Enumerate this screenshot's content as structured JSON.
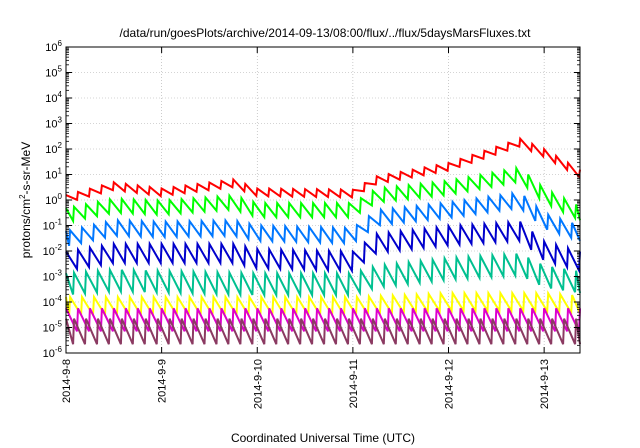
{
  "chart_data": {
    "type": "line",
    "title": "/data/run/goesPlots/archive/2014-09-13/08:00/flux/../flux/5daysMarsFluxes.txt",
    "xlabel": "Coordinated Universal Time (UTC)",
    "ylabel": {
      "prefix": "protons/cm",
      "sup": "2",
      "suffix": "-s-sr-MeV"
    },
    "yscale": "log",
    "ylim": [
      1e-06,
      1000000.0
    ],
    "xlim": [
      "2014-09-08 00:00",
      "2014-09-13 09:00"
    ],
    "grid": true,
    "x_ticks": [
      "2014-9-8",
      "2014-9-9",
      "2014-9-10",
      "2014-9-11",
      "2014-9-12",
      "2014-9-13"
    ],
    "y_ticks": [
      {
        "base": "10",
        "exp": "-6"
      },
      {
        "base": "10",
        "exp": "-5"
      },
      {
        "base": "10",
        "exp": "-4"
      },
      {
        "base": "10",
        "exp": "-3"
      },
      {
        "base": "10",
        "exp": "-2"
      },
      {
        "base": "10",
        "exp": "-1"
      },
      {
        "base": "10",
        "exp": "0"
      },
      {
        "base": "10",
        "exp": "1"
      },
      {
        "base": "10",
        "exp": "2"
      },
      {
        "base": "10",
        "exp": "3"
      },
      {
        "base": "10",
        "exp": "4"
      },
      {
        "base": "10",
        "exp": "5"
      },
      {
        "base": "10",
        "exp": "6"
      }
    ],
    "sawtooth_period_hours": 3,
    "series": [
      {
        "color": "#ff0000",
        "amplitude_decades": 0.3,
        "baseline": [
          [
            "2014-09-08 00:00",
            1.1
          ],
          [
            "2014-09-08 12:00",
            3.5
          ],
          [
            "2014-09-09 00:00",
            2.0
          ],
          [
            "2014-09-09 18:00",
            4.5
          ],
          [
            "2014-09-10 00:00",
            2.0
          ],
          [
            "2014-09-11 00:00",
            1.8
          ],
          [
            "2014-09-11 06:00",
            6
          ],
          [
            "2014-09-12 00:00",
            20
          ],
          [
            "2014-09-12 18:00",
            180
          ],
          [
            "2014-09-13 00:00",
            70
          ],
          [
            "2014-09-13 09:00",
            11
          ]
        ]
      },
      {
        "color": "#00ff00",
        "amplitude_decades": 0.55,
        "baseline": [
          [
            "2014-09-08 00:00",
            0.25
          ],
          [
            "2014-09-08 12:00",
            0.6
          ],
          [
            "2014-09-09 00:00",
            0.5
          ],
          [
            "2014-09-09 18:00",
            0.8
          ],
          [
            "2014-09-10 00:00",
            0.4
          ],
          [
            "2014-09-11 00:00",
            0.4
          ],
          [
            "2014-09-11 06:00",
            1.5
          ],
          [
            "2014-09-12 00:00",
            3
          ],
          [
            "2014-09-12 18:00",
            10
          ],
          [
            "2014-09-13 00:00",
            1.5
          ],
          [
            "2014-09-13 09:00",
            0.3
          ]
        ]
      },
      {
        "color": "#0077ff",
        "amplitude_decades": 0.6,
        "baseline": [
          [
            "2014-09-08 00:00",
            0.03
          ],
          [
            "2014-09-08 12:00",
            0.08
          ],
          [
            "2014-09-09 00:00",
            0.07
          ],
          [
            "2014-09-09 18:00",
            0.08
          ],
          [
            "2014-09-10 00:00",
            0.05
          ],
          [
            "2014-09-11 00:00",
            0.04
          ],
          [
            "2014-09-11 06:00",
            0.2
          ],
          [
            "2014-09-12 00:00",
            0.4
          ],
          [
            "2014-09-12 18:00",
            1.0
          ],
          [
            "2014-09-13 00:00",
            0.15
          ],
          [
            "2014-09-13 09:00",
            0.05
          ]
        ]
      },
      {
        "color": "#0000cc",
        "amplitude_decades": 0.75,
        "baseline": [
          [
            "2014-09-08 00:00",
            0.004
          ],
          [
            "2014-09-08 12:00",
            0.008
          ],
          [
            "2014-09-09 00:00",
            0.008
          ],
          [
            "2014-09-09 18:00",
            0.008
          ],
          [
            "2014-09-10 00:00",
            0.005
          ],
          [
            "2014-09-11 00:00",
            0.004
          ],
          [
            "2014-09-11 06:00",
            0.02
          ],
          [
            "2014-09-12 00:00",
            0.04
          ],
          [
            "2014-09-12 18:00",
            0.06
          ],
          [
            "2014-09-13 00:00",
            0.01
          ],
          [
            "2014-09-13 09:00",
            0.004
          ]
        ]
      },
      {
        "color": "#00c090",
        "amplitude_decades": 0.85,
        "baseline": [
          [
            "2014-09-08 00:00",
            0.0005
          ],
          [
            "2014-09-08 12:00",
            0.0007
          ],
          [
            "2014-09-10 00:00",
            0.0005
          ],
          [
            "2014-09-11 00:00",
            0.0005
          ],
          [
            "2014-09-11 06:00",
            0.001
          ],
          [
            "2014-09-12 00:00",
            0.002
          ],
          [
            "2014-09-12 18:00",
            0.003
          ],
          [
            "2014-09-13 00:00",
            0.001
          ],
          [
            "2014-09-13 09:00",
            0.0006
          ]
        ]
      },
      {
        "color": "#ffff00",
        "amplitude_decades": 0.7,
        "baseline": [
          [
            "2014-09-08 00:00",
            7e-05
          ],
          [
            "2014-09-11 00:00",
            7e-05
          ],
          [
            "2014-09-12 00:00",
            0.0001
          ],
          [
            "2014-09-13 00:00",
            0.0001
          ],
          [
            "2014-09-13 09:00",
            8e-05
          ]
        ]
      },
      {
        "color": "#dd00cc",
        "amplitude_decades": 0.9,
        "baseline": [
          [
            "2014-09-08 00:00",
            2e-05
          ],
          [
            "2014-09-13 09:00",
            2e-05
          ]
        ]
      },
      {
        "color": "#8b3a62",
        "amplitude_decades": 1.0,
        "baseline": [
          [
            "2014-09-08 00:00",
            7e-06
          ],
          [
            "2014-09-13 09:00",
            7e-06
          ]
        ]
      }
    ]
  }
}
